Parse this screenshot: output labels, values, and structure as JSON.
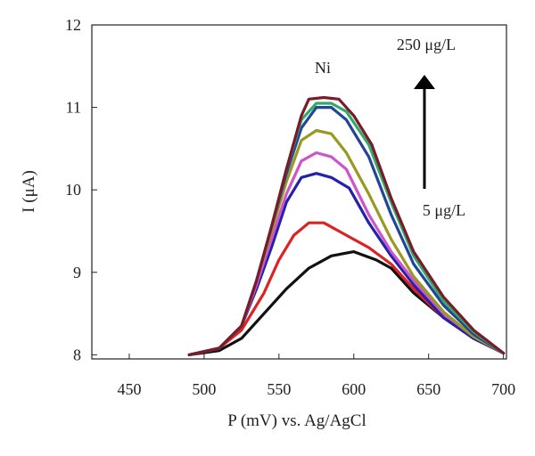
{
  "chart_data": {
    "type": "line",
    "xlabel": "P (mV) vs. Ag/AgCl",
    "ylabel": "I (μA)",
    "xlim": [
      425,
      702
    ],
    "ylim": [
      7.95,
      12
    ],
    "xticks": [
      450,
      500,
      550,
      600,
      650,
      700
    ],
    "yticks": [
      8,
      9,
      10,
      11,
      12
    ],
    "grid": false,
    "legend": "none",
    "annotations": {
      "peak_label": "Ni",
      "top_label": "250 μg/L",
      "bottom_label": "5 μg/L",
      "arrow_direction": "up"
    },
    "series": [
      {
        "color": "#111111",
        "points": [
          [
            490,
            8.0
          ],
          [
            510,
            8.05
          ],
          [
            525,
            8.2
          ],
          [
            540,
            8.5
          ],
          [
            555,
            8.8
          ],
          [
            570,
            9.05
          ],
          [
            585,
            9.2
          ],
          [
            600,
            9.25
          ],
          [
            615,
            9.15
          ],
          [
            625,
            9.05
          ],
          [
            640,
            8.75
          ],
          [
            660,
            8.45
          ],
          [
            680,
            8.2
          ],
          [
            700,
            8.02
          ]
        ]
      },
      {
        "color": "#dd2222",
        "points": [
          [
            490,
            8.0
          ],
          [
            510,
            8.08
          ],
          [
            525,
            8.3
          ],
          [
            540,
            8.75
          ],
          [
            550,
            9.15
          ],
          [
            560,
            9.45
          ],
          [
            570,
            9.6
          ],
          [
            580,
            9.6
          ],
          [
            595,
            9.45
          ],
          [
            610,
            9.3
          ],
          [
            625,
            9.1
          ],
          [
            640,
            8.8
          ],
          [
            660,
            8.45
          ],
          [
            680,
            8.2
          ],
          [
            700,
            8.02
          ]
        ]
      },
      {
        "color": "#2222aa",
        "points": [
          [
            490,
            8.0
          ],
          [
            510,
            8.08
          ],
          [
            525,
            8.35
          ],
          [
            535,
            8.8
          ],
          [
            545,
            9.3
          ],
          [
            555,
            9.85
          ],
          [
            565,
            10.15
          ],
          [
            575,
            10.2
          ],
          [
            585,
            10.15
          ],
          [
            597,
            10.02
          ],
          [
            610,
            9.6
          ],
          [
            625,
            9.2
          ],
          [
            640,
            8.85
          ],
          [
            660,
            8.45
          ],
          [
            680,
            8.2
          ],
          [
            700,
            8.02
          ]
        ]
      },
      {
        "color": "#cc55cc",
        "points": [
          [
            490,
            8.0
          ],
          [
            510,
            8.08
          ],
          [
            525,
            8.35
          ],
          [
            535,
            8.85
          ],
          [
            545,
            9.4
          ],
          [
            555,
            9.95
          ],
          [
            565,
            10.35
          ],
          [
            575,
            10.45
          ],
          [
            585,
            10.4
          ],
          [
            595,
            10.25
          ],
          [
            610,
            9.7
          ],
          [
            625,
            9.25
          ],
          [
            640,
            8.9
          ],
          [
            660,
            8.5
          ],
          [
            680,
            8.22
          ],
          [
            700,
            8.02
          ]
        ]
      },
      {
        "color": "#999922",
        "points": [
          [
            490,
            8.0
          ],
          [
            510,
            8.08
          ],
          [
            525,
            8.35
          ],
          [
            535,
            8.9
          ],
          [
            545,
            9.5
          ],
          [
            555,
            10.1
          ],
          [
            565,
            10.6
          ],
          [
            575,
            10.72
          ],
          [
            585,
            10.68
          ],
          [
            595,
            10.45
          ],
          [
            610,
            9.95
          ],
          [
            625,
            9.4
          ],
          [
            640,
            8.95
          ],
          [
            660,
            8.52
          ],
          [
            680,
            8.22
          ],
          [
            700,
            8.02
          ]
        ]
      },
      {
        "color": "#224499",
        "points": [
          [
            490,
            8.0
          ],
          [
            510,
            8.08
          ],
          [
            525,
            8.35
          ],
          [
            535,
            8.9
          ],
          [
            545,
            9.55
          ],
          [
            555,
            10.2
          ],
          [
            565,
            10.75
          ],
          [
            575,
            11.0
          ],
          [
            585,
            11.0
          ],
          [
            595,
            10.85
          ],
          [
            610,
            10.4
          ],
          [
            625,
            9.7
          ],
          [
            640,
            9.1
          ],
          [
            660,
            8.6
          ],
          [
            680,
            8.25
          ],
          [
            700,
            8.02
          ]
        ]
      },
      {
        "color": "#33aa66",
        "points": [
          [
            490,
            8.0
          ],
          [
            510,
            8.08
          ],
          [
            525,
            8.35
          ],
          [
            535,
            8.9
          ],
          [
            545,
            9.55
          ],
          [
            555,
            10.25
          ],
          [
            565,
            10.85
          ],
          [
            575,
            11.05
          ],
          [
            585,
            11.05
          ],
          [
            595,
            10.95
          ],
          [
            610,
            10.55
          ],
          [
            625,
            9.85
          ],
          [
            640,
            9.2
          ],
          [
            660,
            8.65
          ],
          [
            680,
            8.28
          ],
          [
            700,
            8.02
          ]
        ]
      },
      {
        "color": "#7a1a2a",
        "points": [
          [
            490,
            8.0
          ],
          [
            510,
            8.08
          ],
          [
            525,
            8.35
          ],
          [
            535,
            8.9
          ],
          [
            545,
            9.55
          ],
          [
            555,
            10.25
          ],
          [
            565,
            10.9
          ],
          [
            570,
            11.1
          ],
          [
            580,
            11.12
          ],
          [
            590,
            11.1
          ],
          [
            600,
            10.9
          ],
          [
            612,
            10.55
          ],
          [
            625,
            9.9
          ],
          [
            640,
            9.25
          ],
          [
            660,
            8.7
          ],
          [
            680,
            8.3
          ],
          [
            700,
            8.02
          ]
        ]
      }
    ]
  }
}
